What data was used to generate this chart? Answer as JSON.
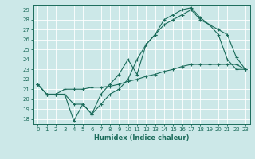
{
  "xlabel": "Humidex (Indice chaleur)",
  "bg_color": "#cce8e8",
  "grid_color": "#ffffff",
  "line_color": "#1a6b5a",
  "xlim": [
    -0.5,
    23.5
  ],
  "ylim": [
    17.5,
    29.5
  ],
  "yticks": [
    18,
    19,
    20,
    21,
    22,
    23,
    24,
    25,
    26,
    27,
    28,
    29
  ],
  "xticks": [
    0,
    1,
    2,
    3,
    4,
    5,
    6,
    7,
    8,
    9,
    10,
    11,
    12,
    13,
    14,
    15,
    16,
    17,
    18,
    19,
    20,
    21,
    22,
    23
  ],
  "line1": [
    21.5,
    20.5,
    20.5,
    20.5,
    19.5,
    19.5,
    18.5,
    19.5,
    20.5,
    21.0,
    22.0,
    24.0,
    25.5,
    26.5,
    27.5,
    28.0,
    28.5,
    29.0,
    28.0,
    27.5,
    26.5,
    24.0,
    23.0,
    23.0
  ],
  "line2": [
    21.5,
    20.5,
    20.5,
    20.5,
    17.8,
    19.5,
    18.5,
    20.5,
    21.5,
    22.5,
    24.0,
    22.5,
    25.5,
    26.5,
    28.0,
    28.5,
    29.0,
    29.2,
    28.2,
    27.5,
    27.0,
    26.5,
    24.2,
    23.0
  ],
  "line3": [
    21.5,
    20.5,
    20.5,
    21.0,
    21.0,
    21.0,
    21.2,
    21.2,
    21.3,
    21.5,
    21.8,
    22.0,
    22.3,
    22.5,
    22.8,
    23.0,
    23.3,
    23.5,
    23.5,
    23.5,
    23.5,
    23.5,
    23.5,
    23.0
  ]
}
